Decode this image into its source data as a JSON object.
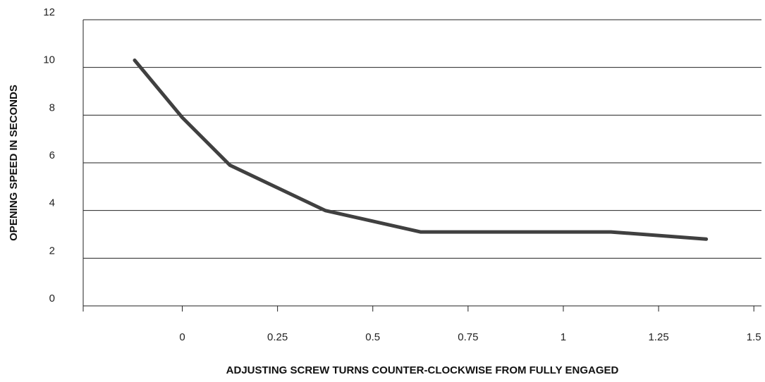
{
  "chart_data": {
    "type": "line",
    "title": "",
    "xlabel": "ADJUSTING SCREW TURNS COUNTER-CLOCKWISE FROM FULLY ENGAGED",
    "ylabel": "OPENING SPEED IN SECONDS",
    "xlim": [
      -0.26,
      1.52
    ],
    "ylim": [
      0,
      12
    ],
    "x_ticks": [
      0,
      0.25,
      0.5,
      0.75,
      1,
      1.25,
      1.5
    ],
    "x_tick_labels": [
      "0",
      "0.25",
      "0.5",
      "0.75",
      "1",
      "1.25",
      "1.5"
    ],
    "y_ticks": [
      0,
      2,
      4,
      6,
      8,
      10,
      12
    ],
    "y_tick_labels": [
      "0",
      "2",
      "4",
      "6",
      "8",
      "10",
      "12"
    ],
    "grid": true,
    "series": [
      {
        "color": "#404040",
        "x": [
          -0.125,
          0,
          0.125,
          0.375,
          0.625,
          0.875,
          1.125,
          1.375
        ],
        "y": [
          10.3,
          7.9,
          5.9,
          4.0,
          3.1,
          3.1,
          3.1,
          2.8
        ]
      }
    ]
  }
}
